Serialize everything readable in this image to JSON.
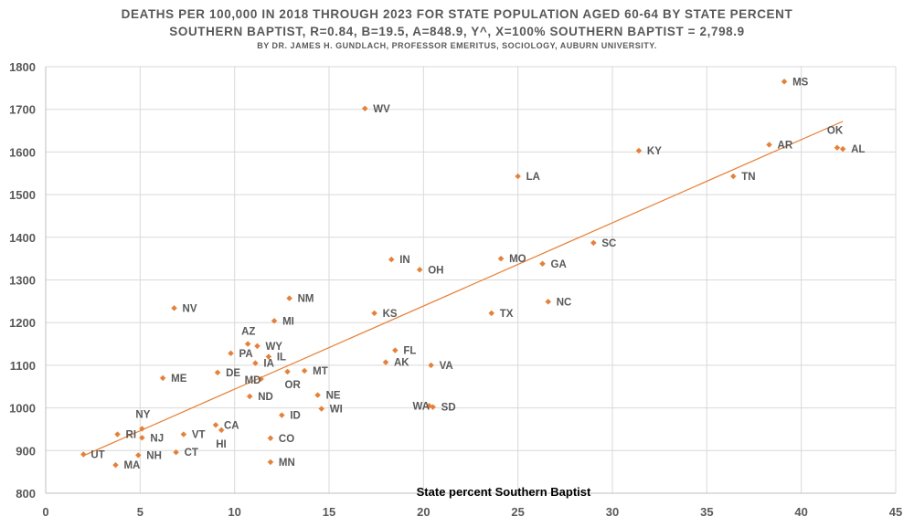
{
  "title_line1": "DEATHS PER 100,000 IN 2018 THROUGH 2023 FOR STATE POPULATION AGED 60-64 BY STATE PERCENT",
  "title_line2": "SOUTHERN BAPTIST, R=0.84, B=19.5, A=848.9, Y^, X=100% SOUTHERN BAPTIST =  2,798.9",
  "title_line3": "BY DR. JAMES H. GUNDLACH, PROFESSOR EMERITUS, SOCIOLOGY, AUBURN UNIVERSITY.",
  "chart_data": {
    "type": "scatter",
    "xlabel": "State percent Southern Baptist",
    "ylabel": "",
    "xlim": [
      0,
      45
    ],
    "ylim": [
      800,
      1800
    ],
    "xticks": [
      0,
      5,
      10,
      15,
      20,
      25,
      30,
      35,
      40,
      45
    ],
    "yticks": [
      800,
      900,
      1000,
      1100,
      1200,
      1300,
      1400,
      1500,
      1600,
      1700,
      1800
    ],
    "grid": true,
    "marker_color": "#ED7D31",
    "trendline": {
      "intercept": 848.9,
      "slope": 19.5,
      "x_start": 2,
      "x_end": 42.2,
      "color": "#ED7D31"
    },
    "points": [
      {
        "label": "MS",
        "x": 39.1,
        "y": 1765
      },
      {
        "label": "WV",
        "x": 16.9,
        "y": 1702
      },
      {
        "label": "AR",
        "x": 38.3,
        "y": 1617
      },
      {
        "label": "OK",
        "x": 41.9,
        "y": 1610
      },
      {
        "label": "AL",
        "x": 42.2,
        "y": 1607
      },
      {
        "label": "KY",
        "x": 31.4,
        "y": 1603
      },
      {
        "label": "LA",
        "x": 25.0,
        "y": 1543
      },
      {
        "label": "TN",
        "x": 36.4,
        "y": 1543
      },
      {
        "label": "SC",
        "x": 29.0,
        "y": 1387
      },
      {
        "label": "MO",
        "x": 24.1,
        "y": 1350
      },
      {
        "label": "IN",
        "x": 18.3,
        "y": 1348
      },
      {
        "label": "GA",
        "x": 26.3,
        "y": 1338
      },
      {
        "label": "OH",
        "x": 19.8,
        "y": 1324
      },
      {
        "label": "NM",
        "x": 12.9,
        "y": 1257
      },
      {
        "label": "NC",
        "x": 26.6,
        "y": 1249
      },
      {
        "label": "NV",
        "x": 6.8,
        "y": 1234
      },
      {
        "label": "KS",
        "x": 17.4,
        "y": 1222
      },
      {
        "label": "TX",
        "x": 23.6,
        "y": 1222
      },
      {
        "label": "MI",
        "x": 12.1,
        "y": 1204
      },
      {
        "label": "AZ",
        "x": 10.7,
        "y": 1150
      },
      {
        "label": "WY",
        "x": 11.2,
        "y": 1145
      },
      {
        "label": "FL",
        "x": 18.5,
        "y": 1135
      },
      {
        "label": "PA",
        "x": 9.8,
        "y": 1128
      },
      {
        "label": "IL",
        "x": 11.8,
        "y": 1120
      },
      {
        "label": "AK",
        "x": 18.0,
        "y": 1107
      },
      {
        "label": "IA",
        "x": 11.1,
        "y": 1105
      },
      {
        "label": "VA",
        "x": 20.4,
        "y": 1100
      },
      {
        "label": "MT",
        "x": 13.7,
        "y": 1087
      },
      {
        "label": "DE",
        "x": 9.1,
        "y": 1083
      },
      {
        "label": "OR",
        "x": 12.8,
        "y": 1085
      },
      {
        "label": "ME",
        "x": 6.2,
        "y": 1070
      },
      {
        "label": "MD",
        "x": 11.4,
        "y": 1068
      },
      {
        "label": "NE",
        "x": 14.4,
        "y": 1030
      },
      {
        "label": "ND",
        "x": 10.8,
        "y": 1027
      },
      {
        "label": "WA",
        "x": 20.3,
        "y": 1005
      },
      {
        "label": "SD",
        "x": 20.5,
        "y": 1002
      },
      {
        "label": "WI",
        "x": 14.6,
        "y": 998
      },
      {
        "label": "ID",
        "x": 12.5,
        "y": 983
      },
      {
        "label": "CA",
        "x": 9.0,
        "y": 960
      },
      {
        "label": "NY",
        "x": 5.1,
        "y": 951
      },
      {
        "label": "HI",
        "x": 9.3,
        "y": 948
      },
      {
        "label": "RI",
        "x": 3.8,
        "y": 938
      },
      {
        "label": "VT",
        "x": 7.3,
        "y": 938
      },
      {
        "label": "NJ",
        "x": 5.1,
        "y": 930
      },
      {
        "label": "CO",
        "x": 11.9,
        "y": 929
      },
      {
        "label": "CT",
        "x": 6.9,
        "y": 896
      },
      {
        "label": "UT",
        "x": 2.0,
        "y": 891
      },
      {
        "label": "NH",
        "x": 4.9,
        "y": 889
      },
      {
        "label": "MN",
        "x": 11.9,
        "y": 873
      },
      {
        "label": "MA",
        "x": 3.7,
        "y": 866
      }
    ]
  }
}
